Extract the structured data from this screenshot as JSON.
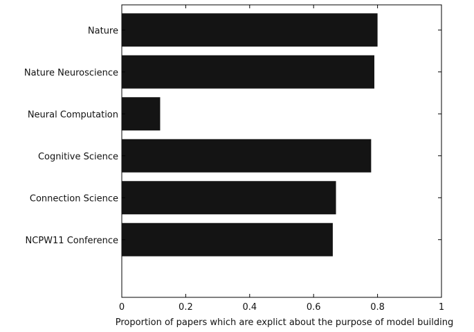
{
  "chart_data": {
    "type": "bar",
    "orientation": "horizontal",
    "categories": [
      "Nature",
      "Nature Neuroscience",
      "Neural Computation",
      "Cognitive Science",
      "Connection Science",
      "NCPW11 Conference"
    ],
    "values": [
      0.8,
      0.79,
      0.12,
      0.78,
      0.67,
      0.66
    ],
    "xlabel": "Proportion of papers which are explict about the purpose of model building",
    "ylabel": "",
    "xlim": [
      0,
      1
    ],
    "xticks": [
      "0",
      "0.2",
      "0.4",
      "0.6",
      "0.8",
      "1"
    ],
    "grid": false,
    "bar_color": "#141414"
  }
}
